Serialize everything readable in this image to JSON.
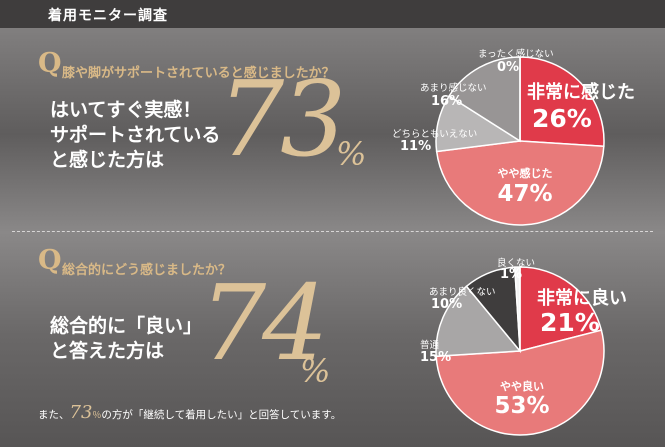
{
  "header": {
    "title": "着用モニター調査"
  },
  "survey1": {
    "q_letter": "Q",
    "question": "膝や脚がサポートされていると感じましたか？",
    "lead_lines": [
      "はいてすぐ実感！",
      "サポートされている",
      "と感じた方は"
    ],
    "big_number": "73",
    "percent_sign": "%"
  },
  "survey2": {
    "q_letter": "Q",
    "question": "総合的にどう感じましたか？",
    "lead_lines": [
      "総合的に「良い」",
      "と答えた方は"
    ],
    "big_number": "74",
    "percent_sign": "%",
    "footnote": {
      "pre": "また、",
      "num": "73",
      "pct": "％",
      "post": "の方が「継続して着用したい」と回答しています。"
    }
  },
  "chart_data": [
    {
      "type": "pie",
      "categories": [
        "非常に感じた",
        "やや感じた",
        "どちらともいえない",
        "あまり感じない",
        "まったく感じない"
      ],
      "values": [
        26,
        47,
        11,
        16,
        0
      ],
      "value_labels": [
        "26%",
        "47%",
        "11%",
        "16%",
        "0%"
      ],
      "colors": [
        "#e03a4a",
        "#e87a7a",
        "#b8b6b6",
        "#989595",
        "#7a7878"
      ]
    },
    {
      "type": "pie",
      "categories": [
        "非常に良い",
        "やや良い",
        "普通",
        "あまり良くない",
        "良くない"
      ],
      "values": [
        21,
        53,
        15,
        10,
        1
      ],
      "value_labels": [
        "21%",
        "53%",
        "15%",
        "10%",
        "1%"
      ],
      "colors": [
        "#e03a4a",
        "#e87a7a",
        "#a8a6a6",
        "#3f3d3d",
        "#f4f4f4"
      ]
    }
  ]
}
